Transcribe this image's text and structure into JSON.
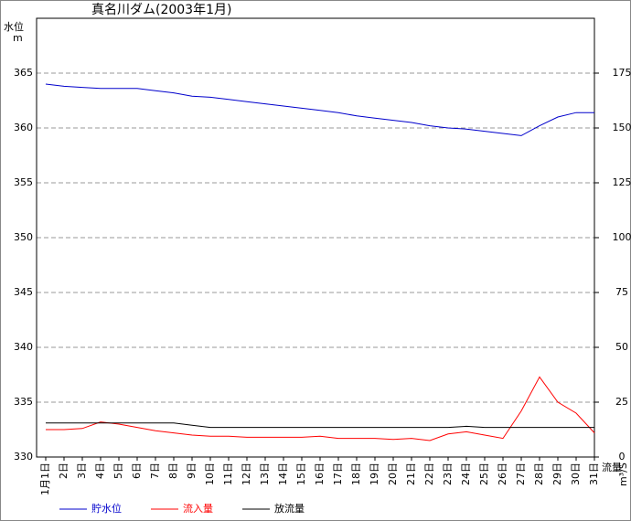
{
  "chart_data": {
    "type": "line",
    "title": "真名川ダム(2003年1月)",
    "y_label": [
      "水位",
      "m"
    ],
    "y2_label": [
      "流量",
      "m³/S"
    ],
    "categories": [
      "1月1日",
      "2日",
      "3日",
      "4日",
      "5日",
      "6日",
      "7日",
      "8日",
      "9日",
      "10日",
      "11日",
      "12日",
      "13日",
      "14日",
      "15日",
      "16日",
      "17日",
      "18日",
      "19日",
      "20日",
      "21日",
      "22日",
      "23日",
      "24日",
      "25日",
      "26日",
      "27日",
      "28日",
      "29日",
      "30日",
      "31日"
    ],
    "series": [
      {
        "name": "貯水位",
        "color": "#0000cc",
        "values": [
          364,
          363.8,
          363.7,
          363.6,
          363.6,
          363.6,
          363.4,
          363.2,
          362.9,
          362.8,
          362.6,
          362.4,
          362.2,
          362.0,
          361.8,
          361.6,
          361.4,
          361.1,
          360.9,
          360.7,
          360.5,
          360.2,
          360.0,
          359.9,
          359.7,
          359.5,
          359.3,
          360.2,
          361.0,
          361.4,
          361.4
        ]
      },
      {
        "name": "流入量",
        "color": "#ff0000",
        "axis": "y2",
        "values": [
          12.5,
          12.5,
          13,
          16,
          15,
          13.5,
          12,
          11,
          10,
          9.5,
          9.5,
          9,
          9,
          9,
          9,
          9.5,
          8.5,
          8.5,
          8.5,
          8,
          8.5,
          7.5,
          10.5,
          11.5,
          10,
          8.5,
          21,
          36.5,
          25,
          20,
          11
        ]
      },
      {
        "name": "放流量",
        "color": "#000000",
        "axis": "y2",
        "values": [
          15.5,
          15.5,
          15.5,
          15.5,
          15.5,
          15.5,
          15.5,
          15.5,
          14.5,
          13.5,
          13.5,
          13.5,
          13.5,
          13.5,
          13.5,
          13.5,
          13.5,
          13.5,
          13.5,
          13.5,
          13.5,
          13.5,
          13.5,
          14,
          13.5,
          13.5,
          13.5,
          13.5,
          13.5,
          13.5,
          13.5
        ]
      }
    ],
    "ylim": [
      330,
      370
    ],
    "yticks": [
      330,
      335,
      340,
      345,
      350,
      355,
      360,
      365
    ],
    "y2lim": [
      0,
      200
    ],
    "y2ticks": [
      0,
      25,
      50,
      75,
      100,
      125,
      150,
      175
    ],
    "grid": true
  }
}
